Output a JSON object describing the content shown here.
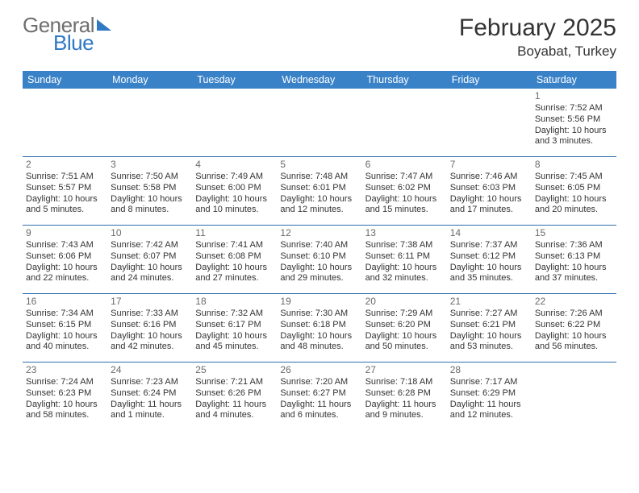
{
  "logo": {
    "word1": "General",
    "word2": "Blue"
  },
  "header": {
    "title": "February 2025",
    "location": "Boyabat, Turkey"
  },
  "calendar": {
    "day_names": [
      "Sunday",
      "Monday",
      "Tuesday",
      "Wednesday",
      "Thursday",
      "Friday",
      "Saturday"
    ],
    "header_bg": "#3a82c8",
    "header_fg": "#ffffff",
    "row_border_color": "#2d6fae",
    "weeks": [
      [
        null,
        null,
        null,
        null,
        null,
        null,
        {
          "n": "1",
          "sunrise": "7:52 AM",
          "sunset": "5:56 PM",
          "daylight": "10 hours and 3 minutes."
        }
      ],
      [
        {
          "n": "2",
          "sunrise": "7:51 AM",
          "sunset": "5:57 PM",
          "daylight": "10 hours and 5 minutes."
        },
        {
          "n": "3",
          "sunrise": "7:50 AM",
          "sunset": "5:58 PM",
          "daylight": "10 hours and 8 minutes."
        },
        {
          "n": "4",
          "sunrise": "7:49 AM",
          "sunset": "6:00 PM",
          "daylight": "10 hours and 10 minutes."
        },
        {
          "n": "5",
          "sunrise": "7:48 AM",
          "sunset": "6:01 PM",
          "daylight": "10 hours and 12 minutes."
        },
        {
          "n": "6",
          "sunrise": "7:47 AM",
          "sunset": "6:02 PM",
          "daylight": "10 hours and 15 minutes."
        },
        {
          "n": "7",
          "sunrise": "7:46 AM",
          "sunset": "6:03 PM",
          "daylight": "10 hours and 17 minutes."
        },
        {
          "n": "8",
          "sunrise": "7:45 AM",
          "sunset": "6:05 PM",
          "daylight": "10 hours and 20 minutes."
        }
      ],
      [
        {
          "n": "9",
          "sunrise": "7:43 AM",
          "sunset": "6:06 PM",
          "daylight": "10 hours and 22 minutes."
        },
        {
          "n": "10",
          "sunrise": "7:42 AM",
          "sunset": "6:07 PM",
          "daylight": "10 hours and 24 minutes."
        },
        {
          "n": "11",
          "sunrise": "7:41 AM",
          "sunset": "6:08 PM",
          "daylight": "10 hours and 27 minutes."
        },
        {
          "n": "12",
          "sunrise": "7:40 AM",
          "sunset": "6:10 PM",
          "daylight": "10 hours and 29 minutes."
        },
        {
          "n": "13",
          "sunrise": "7:38 AM",
          "sunset": "6:11 PM",
          "daylight": "10 hours and 32 minutes."
        },
        {
          "n": "14",
          "sunrise": "7:37 AM",
          "sunset": "6:12 PM",
          "daylight": "10 hours and 35 minutes."
        },
        {
          "n": "15",
          "sunrise": "7:36 AM",
          "sunset": "6:13 PM",
          "daylight": "10 hours and 37 minutes."
        }
      ],
      [
        {
          "n": "16",
          "sunrise": "7:34 AM",
          "sunset": "6:15 PM",
          "daylight": "10 hours and 40 minutes."
        },
        {
          "n": "17",
          "sunrise": "7:33 AM",
          "sunset": "6:16 PM",
          "daylight": "10 hours and 42 minutes."
        },
        {
          "n": "18",
          "sunrise": "7:32 AM",
          "sunset": "6:17 PM",
          "daylight": "10 hours and 45 minutes."
        },
        {
          "n": "19",
          "sunrise": "7:30 AM",
          "sunset": "6:18 PM",
          "daylight": "10 hours and 48 minutes."
        },
        {
          "n": "20",
          "sunrise": "7:29 AM",
          "sunset": "6:20 PM",
          "daylight": "10 hours and 50 minutes."
        },
        {
          "n": "21",
          "sunrise": "7:27 AM",
          "sunset": "6:21 PM",
          "daylight": "10 hours and 53 minutes."
        },
        {
          "n": "22",
          "sunrise": "7:26 AM",
          "sunset": "6:22 PM",
          "daylight": "10 hours and 56 minutes."
        }
      ],
      [
        {
          "n": "23",
          "sunrise": "7:24 AM",
          "sunset": "6:23 PM",
          "daylight": "10 hours and 58 minutes."
        },
        {
          "n": "24",
          "sunrise": "7:23 AM",
          "sunset": "6:24 PM",
          "daylight": "11 hours and 1 minute."
        },
        {
          "n": "25",
          "sunrise": "7:21 AM",
          "sunset": "6:26 PM",
          "daylight": "11 hours and 4 minutes."
        },
        {
          "n": "26",
          "sunrise": "7:20 AM",
          "sunset": "6:27 PM",
          "daylight": "11 hours and 6 minutes."
        },
        {
          "n": "27",
          "sunrise": "7:18 AM",
          "sunset": "6:28 PM",
          "daylight": "11 hours and 9 minutes."
        },
        {
          "n": "28",
          "sunrise": "7:17 AM",
          "sunset": "6:29 PM",
          "daylight": "11 hours and 12 minutes."
        },
        null
      ]
    ],
    "labels": {
      "sunrise": "Sunrise:",
      "sunset": "Sunset:",
      "daylight": "Daylight:"
    }
  }
}
